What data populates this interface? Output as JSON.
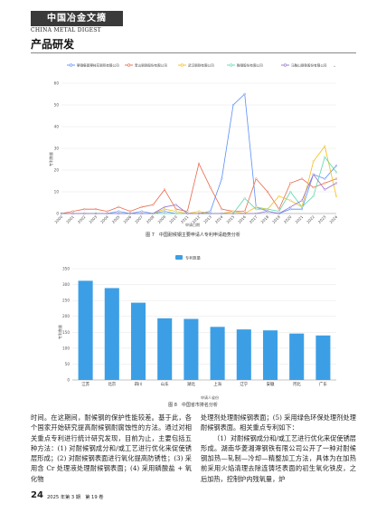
{
  "header": {
    "journal_cn": "中国冶金文摘",
    "journal_en": "CHINA METAL DIGEST",
    "section": "产品研发"
  },
  "figure7": {
    "caption": "图 7　中国耐候钢主要申请人专利申请趋势分析",
    "xlabel": "申请日期",
    "ylabel": "专利数量"
  },
  "figure8": {
    "caption": "图 8　中国省市排名分析",
    "legend": "专利数量",
    "xlabel": "申请人省份",
    "ylabel": "专利数量"
  },
  "body": {
    "left_para": "时间。在这期间，耐候钢的保护性能较差。基于此，各个国家开始研究提高耐候钢耐腐蚀性的方法。通过对相关重点专利进行统计研究发现，目前为止，主要包括五种方法：(1) 对耐候钢成分和/或工艺进行优化来促使锈层形成；(2) 对耐候钢表面进行氧化提高防锈性；(3) 采用含 Cr 处理液处理耐候钢表面；(4) 采用磷酸盐 + 氧化物",
    "right_para1": "处理剂处理耐候钢表面；(5) 采用绿色环保处理剂处理耐候钢表面。相关重点专利如下：",
    "right_para2": "（1）对耐候钢成分和/或工艺进行优化来促使锈层形成。湖南华菱湘潭钢铁有限公司公开了一种对耐候钢加热—轧制—冷却—精整加工方法，具体为在加热前采用火焰清理去除连铸坯表面的初生氧化铁皮，之后加热，控制炉内残氧量，炉"
  },
  "footer": {
    "page": "24",
    "issue": "2025 年第 3 期　第 19 卷"
  },
  "chart_data": [
    {
      "type": "line",
      "title": "",
      "xlabel": "申请日期",
      "ylabel": "专利数量",
      "ylim": [
        0,
        60
      ],
      "x": [
        "2000",
        "2001",
        "2002",
        "2003",
        "2004",
        "2005",
        "2006",
        "2007",
        "2008",
        "2009",
        "2010",
        "2011",
        "2012",
        "2013",
        "2014",
        "2015",
        "2016",
        "2017",
        "2018",
        "2019",
        "2020",
        "2021",
        "2022",
        "2023",
        "2024"
      ],
      "series": [
        {
          "name": "攀钢集团攀枝花钢钒有限公司",
          "color": "#5b8ff9",
          "values": [
            0,
            0,
            0,
            0,
            0,
            1,
            0,
            1,
            0,
            1,
            0,
            0,
            0,
            1,
            16,
            50,
            55,
            3,
            1,
            0,
            2,
            2,
            18,
            16,
            22
          ]
        },
        {
          "name": "宝山钢铁股份有限公司",
          "color": "#e8684a",
          "values": [
            0,
            1,
            2,
            2,
            1,
            3,
            1,
            3,
            4,
            11,
            2,
            1,
            23,
            12,
            2,
            1,
            1,
            16,
            10,
            2,
            14,
            16,
            12,
            14,
            16
          ]
        },
        {
          "name": "武汉钢铁有限公司",
          "color": "#f6bd16",
          "values": [
            0,
            0,
            0,
            0,
            0,
            0,
            0,
            0,
            0,
            2,
            1,
            0,
            1,
            0,
            0,
            1,
            0,
            3,
            2,
            8,
            6,
            3,
            24,
            31,
            8
          ]
        },
        {
          "name": "鞍钢股份有限公司",
          "color": "#5ad8a6",
          "values": [
            0,
            0,
            0,
            0,
            0,
            0,
            0,
            0,
            0,
            0,
            0,
            0,
            0,
            0,
            0,
            0,
            7,
            2,
            2,
            1,
            10,
            3,
            8,
            26,
            19
          ]
        },
        {
          "name": "马鞍山钢铁股份有限公司",
          "color": "#9270ca",
          "values": [
            0,
            0,
            0,
            0,
            0,
            0,
            0,
            0,
            0,
            3,
            4,
            0,
            0,
            0,
            0,
            0,
            0,
            0,
            1,
            0,
            3,
            6,
            18,
            11,
            14
          ]
        }
      ]
    },
    {
      "type": "bar",
      "title": "",
      "xlabel": "申请人省份",
      "ylabel": "专利数量",
      "ylim": [
        0,
        350
      ],
      "categories": [
        "江苏",
        "北京",
        "四川",
        "山东",
        "湖北",
        "上海",
        "辽宁",
        "安徽",
        "河北",
        "广东"
      ],
      "series": [
        {
          "name": "专利数量",
          "color": "#3c9fe6",
          "values": [
            312,
            289,
            243,
            194,
            192,
            167,
            159,
            156,
            146,
            140
          ]
        }
      ]
    }
  ]
}
